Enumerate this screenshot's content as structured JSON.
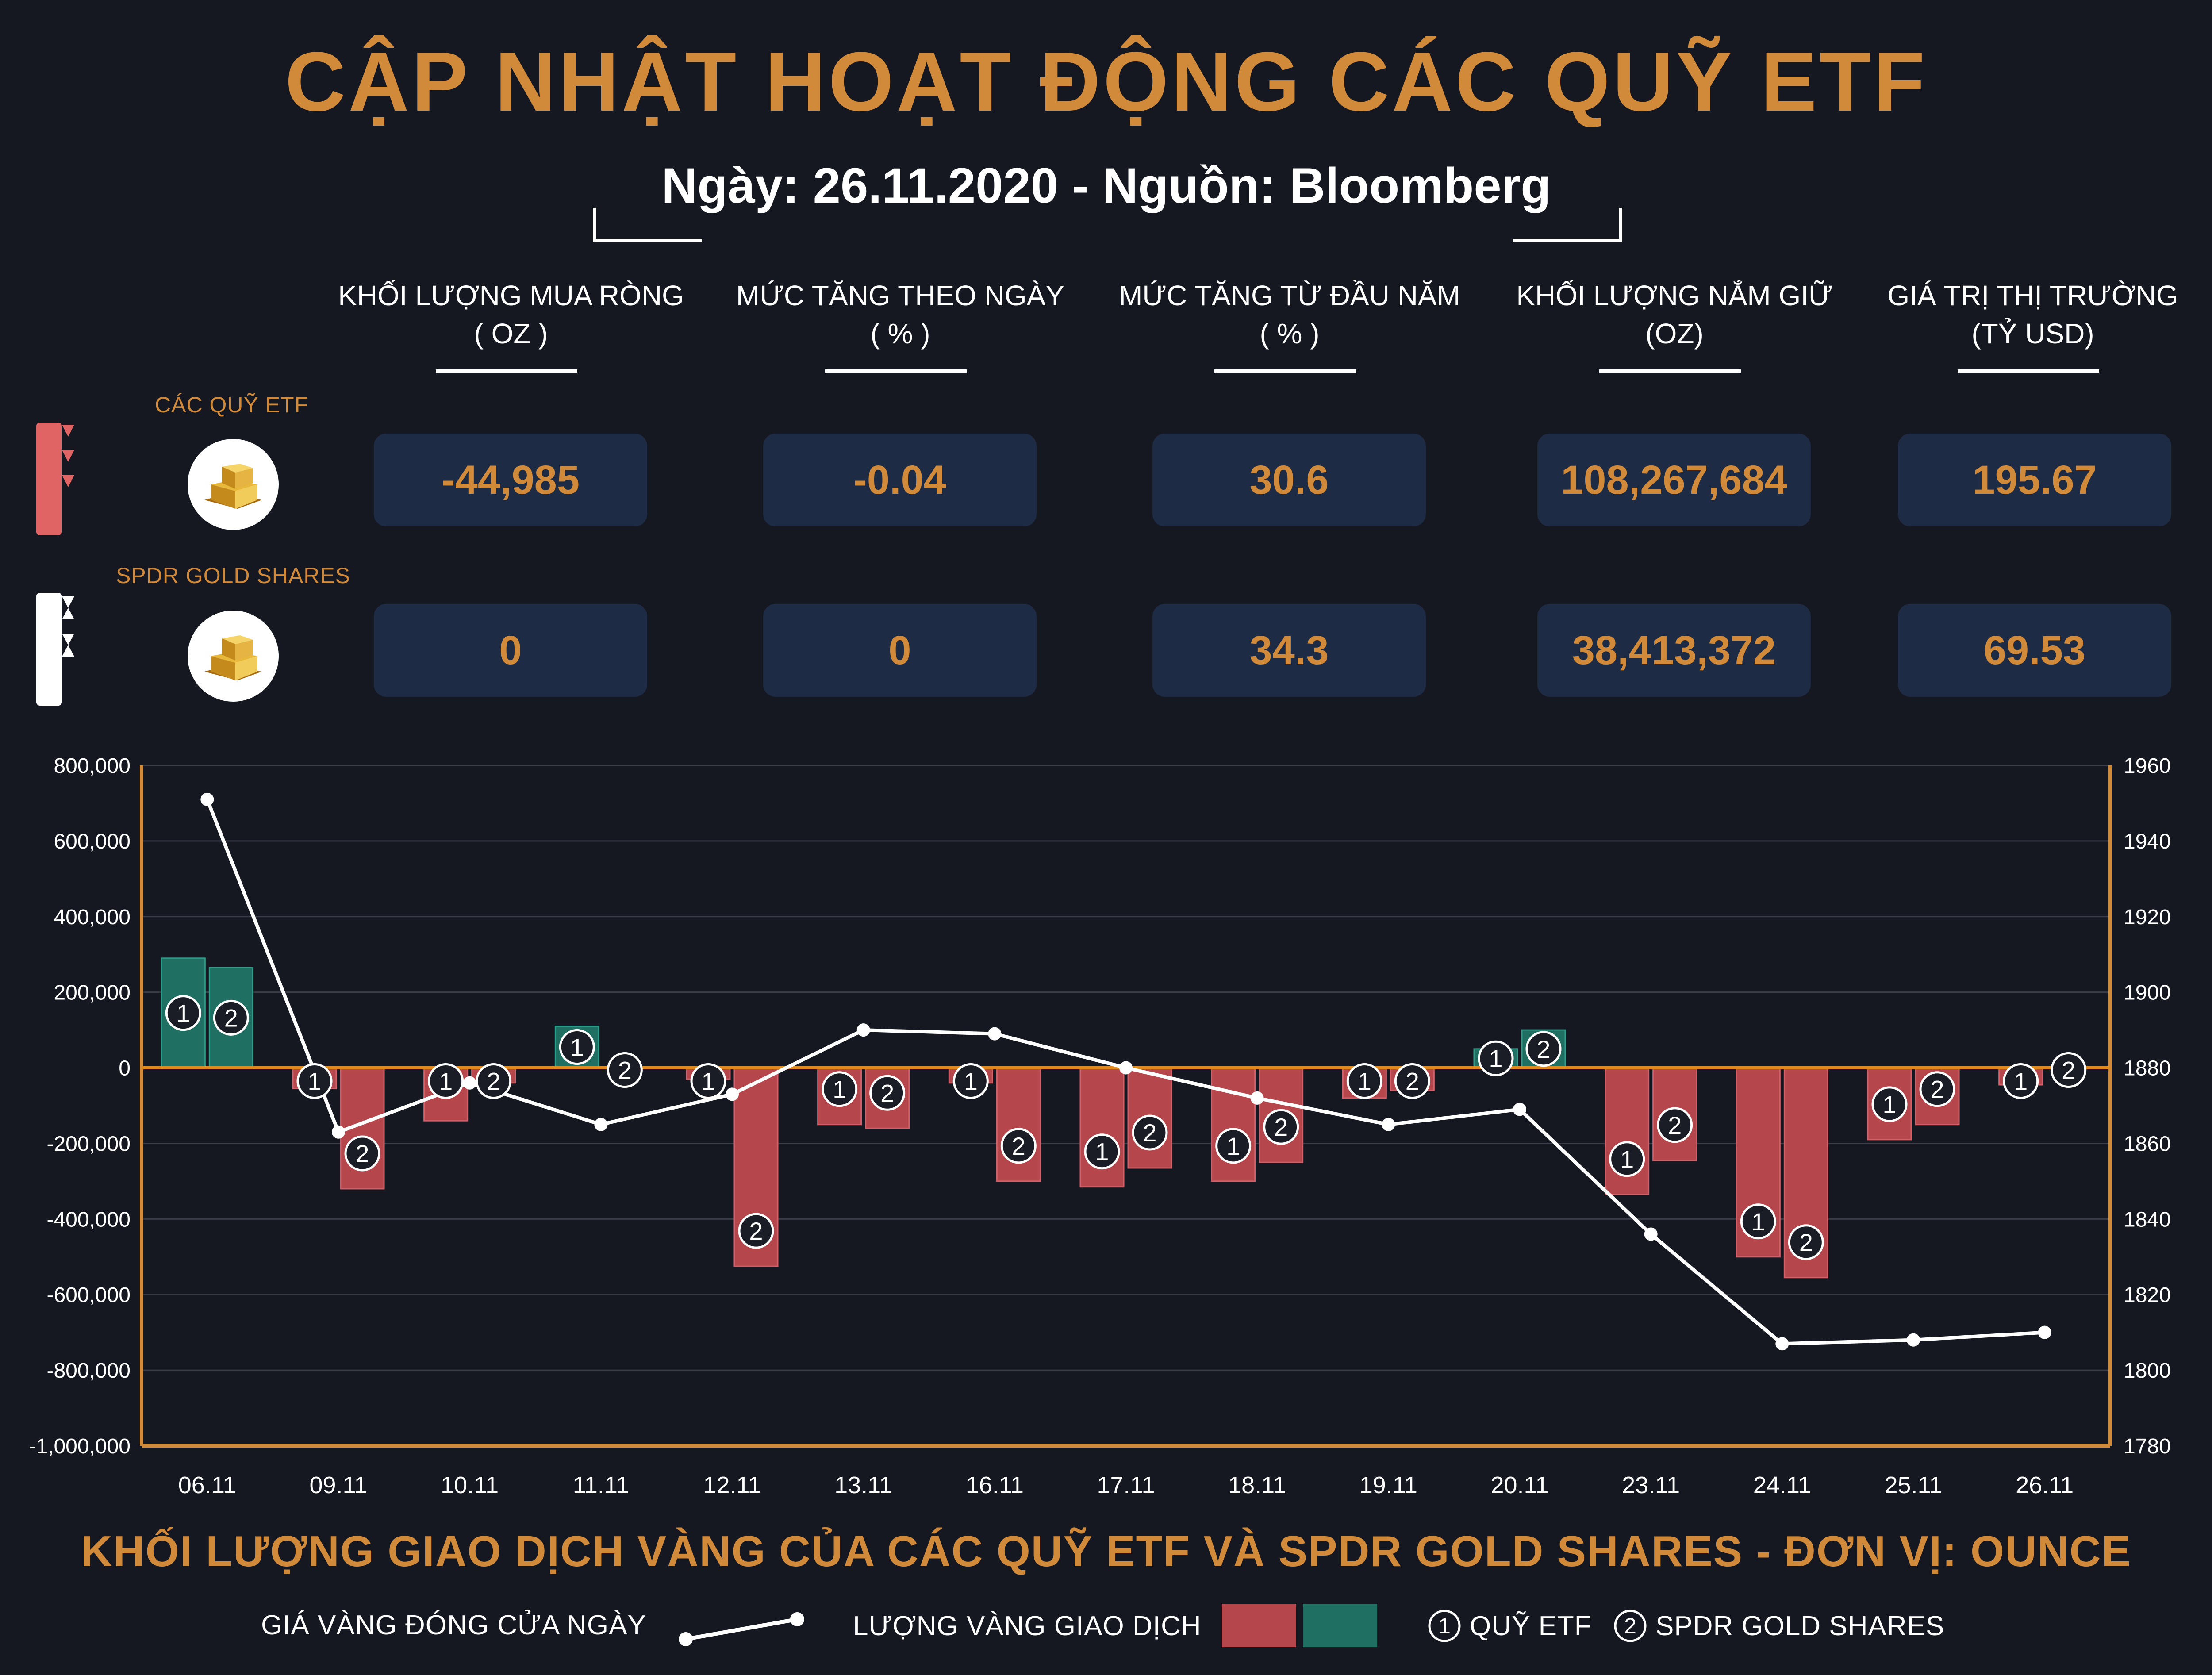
{
  "header": {
    "title": "CẬP NHẬT HOẠT ĐỘNG CÁC QUỸ ETF",
    "subtitle": "Ngày: 26.11.2020 - Nguồn: Bloomberg"
  },
  "table": {
    "columns": [
      {
        "line1": "KHỐI LƯỢNG MUA RÒNG",
        "line2": "( OZ )"
      },
      {
        "line1": "MỨC TĂNG THEO NGÀY",
        "line2": "( % )"
      },
      {
        "line1": "MỨC TĂNG TỪ ĐẦU NĂM",
        "line2": "( % )"
      },
      {
        "line1": "KHỐI LƯỢNG NẮM GIỮ",
        "line2": "(OZ)"
      },
      {
        "line1": "GIÁ TRỊ THỊ TRƯỜNG",
        "line2": "(TỶ USD)"
      }
    ],
    "rows": [
      {
        "label": "CÁC QUỸ ETF",
        "values": [
          "-44,985",
          "-0.04",
          "30.6",
          "108,267,684",
          "195.67"
        ]
      },
      {
        "label": "SPDR GOLD SHARES",
        "values": [
          "0",
          "0",
          "34.3",
          "38,413,372",
          "69.53"
        ]
      }
    ]
  },
  "colors": {
    "accent": "#d08a3a",
    "negative_bar": "#b5474c",
    "positive_bar": "#1f6f63",
    "zero_line": "#e08a1e",
    "price_line": "#ffffff"
  },
  "chart_data": {
    "type": "bar",
    "categories": [
      "06.11",
      "09.11",
      "10.11",
      "11.11",
      "12.11",
      "13.11",
      "16.11",
      "17.11",
      "18.11",
      "19.11",
      "20.11",
      "23.11",
      "24.11",
      "25.11",
      "26.11"
    ],
    "series": [
      {
        "name": "QUỸ ETF",
        "marker": "1",
        "values": [
          290000,
          -55000,
          -140000,
          110000,
          -30000,
          -150000,
          -40000,
          -315000,
          -300000,
          -80000,
          50000,
          -335000,
          -500000,
          -190000,
          -45000
        ]
      },
      {
        "name": "SPDR GOLD SHARES",
        "marker": "2",
        "values": [
          265000,
          -320000,
          -40000,
          0,
          -525000,
          -160000,
          -300000,
          -265000,
          -250000,
          -60000,
          100000,
          -245000,
          -555000,
          -150000,
          0
        ]
      }
    ],
    "line_series": {
      "name": "GIÁ VÀNG ĐÓNG CỬA NGÀY",
      "values": [
        1951,
        1863,
        1876,
        1865,
        1873,
        1890,
        1889,
        1880,
        1872,
        1865,
        1869,
        1836,
        1807,
        1808,
        1810
      ]
    },
    "ylim_left": [
      -1000000,
      800000
    ],
    "yticks_left": [
      "800,000",
      "600,000",
      "400,000",
      "200,000",
      "0",
      "-200,000",
      "-400,000",
      "-600,000",
      "-800,000",
      "-1,000,000"
    ],
    "ylim_right": [
      1780,
      1960
    ],
    "yticks_right": [
      "1960",
      "1940",
      "1920",
      "1900",
      "1880",
      "1860",
      "1840",
      "1820",
      "1800",
      "1780"
    ],
    "title": "KHỐI LƯỢNG GIAO DỊCH VÀNG CỦA CÁC QUỸ ETF VÀ SPDR GOLD SHARES - ĐƠN VỊ: OUNCE",
    "grid": true
  },
  "legend": {
    "price_label": "GIÁ VÀNG ĐÓNG CỬA NGÀY",
    "volume_label": "LƯỢNG VÀNG GIAO DỊCH",
    "marker1_label": "QUỸ ETF",
    "marker2_label": "SPDR GOLD SHARES",
    "marker1": "1",
    "marker2": "2"
  }
}
